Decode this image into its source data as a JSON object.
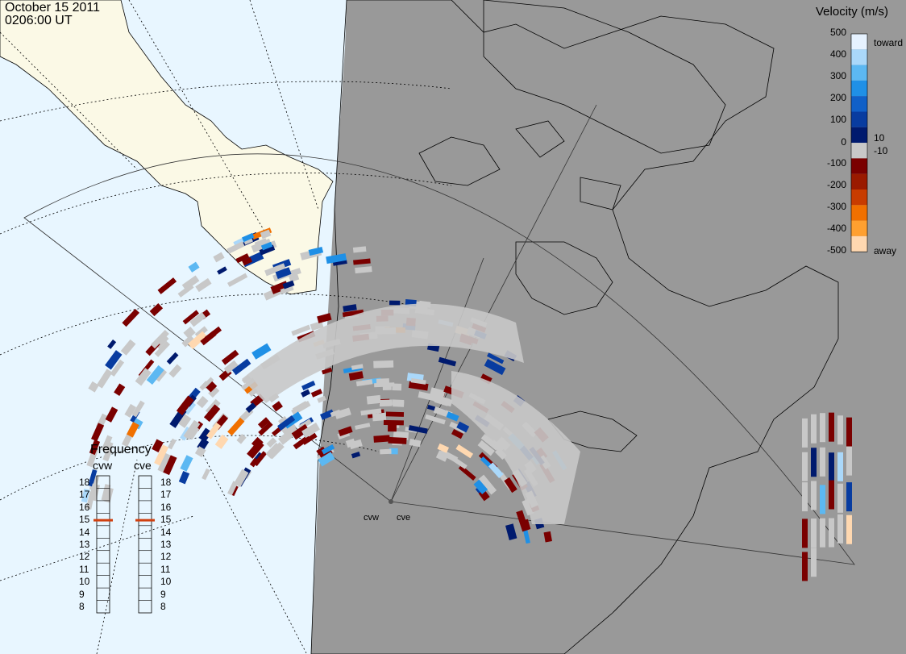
{
  "header": {
    "date": "October 15 2011",
    "time": "0206:00 UT"
  },
  "colorbar": {
    "title": "Velocity (m/s)",
    "ticks": [
      "500",
      "400",
      "300",
      "200",
      "100",
      "10",
      "0",
      "-10",
      "-100",
      "-200",
      "-300",
      "-400",
      "-500"
    ],
    "toward_label": "toward",
    "away_label": "away",
    "colors": [
      "#e6f2ff",
      "#aad8fa",
      "#5cb8f2",
      "#1f90e6",
      "#1060c8",
      "#083ca0",
      "#001a6e",
      "#c8c8c8",
      "#7a0000",
      "#9a1a00",
      "#c83c00",
      "#f07000",
      "#ffa030",
      "#ffd8b0"
    ]
  },
  "radars": {
    "west_label": "cvw",
    "east_label": "cve"
  },
  "frequency": {
    "title": "Frequency",
    "cvw_label": "cvw",
    "cve_label": "cve",
    "scale": [
      "18",
      "17",
      "16",
      "15",
      "14",
      "13",
      "12",
      "11",
      "10",
      "9",
      "8"
    ],
    "cvw_mhz": 15,
    "cve_mhz": 15,
    "marker_color": "#d04010"
  },
  "map_colors": {
    "ocean_day": "#e8f6ff",
    "land_day": "#fbf9e6",
    "night_shade": "#999999",
    "ground_scatter": "#c8c8c8",
    "low_velocity_band": "#adadad"
  }
}
